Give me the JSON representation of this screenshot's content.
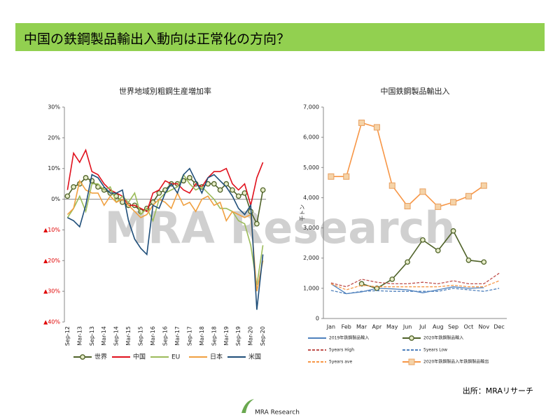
{
  "header": {
    "title": "中国の鉄鋼製品輸出入動向は正常化の方向？",
    "source": "出所：MRAリサーチ",
    "watermark": "MRA Research",
    "logo": "MRA Research"
  },
  "chart_data": [
    {
      "type": "line",
      "title": "世界地域別粗鋼生産増加率",
      "categories": [
        "Sep-12",
        null,
        "Mar-13",
        null,
        "Sep-13",
        null,
        "Mar-14",
        null,
        "Sep-14",
        null,
        "Mar-15",
        null,
        "Sep-15",
        null,
        "Mar-16",
        null,
        "Sep-16",
        null,
        "Mar-17",
        null,
        "Sep-17",
        null,
        "Mar-18",
        null,
        "Sep-18",
        null,
        "Mar-19",
        null,
        "Sep-19",
        null,
        "Mar-20",
        null,
        "Sep-20"
      ],
      "ylim": [
        -40,
        30
      ],
      "yticks": [
        {
          "value": 30,
          "label": "30%"
        },
        {
          "value": 20,
          "label": "20%"
        },
        {
          "value": 10,
          "label": "10%"
        },
        {
          "value": 0,
          "label": "0%"
        },
        {
          "value": -10,
          "label": "▲10%"
        },
        {
          "value": -20,
          "label": "▲20%"
        },
        {
          "value": -30,
          "label": "▲30%"
        },
        {
          "value": -40,
          "label": "▲40%"
        }
      ],
      "negative_tick_color": "#e00000",
      "grid": false,
      "series": [
        {
          "name": "世界",
          "color": "#4f6228",
          "marker": "circle",
          "values": [
            1,
            4,
            5,
            7,
            6,
            4,
            3,
            2,
            1,
            -1,
            -2,
            -2,
            -4,
            -3,
            -1,
            2,
            3,
            5,
            5,
            6,
            7,
            5,
            4,
            5,
            5,
            3,
            5,
            3,
            1,
            2,
            -4,
            -8,
            3
          ]
        },
        {
          "name": "中国",
          "color": "#e0101c",
          "values": [
            3,
            15,
            12,
            16,
            9,
            8,
            5,
            3,
            2,
            1,
            -2,
            -2,
            -3,
            -4,
            2,
            3,
            6,
            5,
            5,
            3,
            2,
            5,
            4,
            7,
            9,
            9,
            10,
            5,
            3,
            5,
            -2,
            7,
            12
          ]
        },
        {
          "name": "EU",
          "color": "#9bbb59",
          "values": [
            -6,
            -3,
            1,
            -4,
            5,
            5,
            3,
            4,
            -1,
            1,
            -1,
            2,
            -5,
            -3,
            -7,
            0,
            2,
            3,
            4,
            8,
            5,
            3,
            4,
            2,
            0,
            -3,
            -3,
            -4,
            -7,
            -8,
            -15,
            -28,
            -15
          ]
        },
        {
          "name": "日本",
          "color": "#f0a040",
          "values": [
            -5,
            -3,
            6,
            3,
            2,
            2,
            -2,
            1,
            -1,
            0,
            -2,
            -4,
            -6,
            -5,
            -2,
            0,
            -1,
            -3,
            2,
            -2,
            -1,
            -4,
            0,
            1,
            -2,
            -1,
            -7,
            -4,
            -5,
            -6,
            -5,
            -30,
            -20
          ]
        },
        {
          "name": "米国",
          "color": "#1f4e79",
          "values": [
            -6,
            -7,
            -9,
            -2,
            8,
            7,
            4,
            2,
            2,
            3,
            -7,
            -13,
            -16,
            -18,
            -2,
            -3,
            2,
            5,
            2,
            8,
            10,
            6,
            2,
            7,
            8,
            6,
            4,
            1,
            -3,
            -5,
            -2,
            -36,
            -18
          ]
        }
      ]
    },
    {
      "type": "line",
      "title": "中国鉄鋼製品輸出入",
      "y_label": "千トン",
      "categories": [
        "Jan",
        "Feb",
        "Mar",
        "Apr",
        "May",
        "Jun",
        "Jul",
        "Aug",
        "Sep",
        "Oct",
        "Nov",
        "Dec"
      ],
      "ylim": [
        0,
        7000
      ],
      "yticks": [
        0,
        {
          "value": 1000,
          "label": "1,000"
        },
        {
          "value": 2000,
          "label": "2,000"
        },
        {
          "value": 3000,
          "label": "3,000"
        },
        {
          "value": 4000,
          "label": "4,000"
        },
        {
          "value": 5000,
          "label": "5,000"
        },
        {
          "value": 6000,
          "label": "6,000"
        },
        {
          "value": 7000,
          "label": "7,000"
        }
      ],
      "grid": false,
      "series": [
        {
          "name": "2019年鉄鋼製品輸入",
          "color": "#4f81bd",
          "values": [
            1150,
            820,
            880,
            1000,
            980,
            950,
            850,
            950,
            1050,
            1000,
            1020,
            null
          ]
        },
        {
          "name": "2020年鉄鋼製品輸入",
          "color": "#4f6228",
          "marker": "circle",
          "values": [
            null,
            null,
            1150,
            1000,
            1300,
            1870,
            2600,
            2250,
            2900,
            1930,
            1870,
            null
          ]
        },
        {
          "name": "5years High",
          "color": "#c0504d",
          "dash": true,
          "values": [
            1180,
            1050,
            1300,
            1200,
            1150,
            1150,
            1200,
            1150,
            1250,
            1150,
            1150,
            1500
          ]
        },
        {
          "name": "5years Low",
          "color": "#4f81bd",
          "dash": true,
          "values": [
            930,
            820,
            900,
            920,
            900,
            900,
            900,
            900,
            1000,
            950,
            900,
            1000
          ]
        },
        {
          "name": "5years ave",
          "color": "#f79646",
          "dash": true,
          "values": [
            1150,
            950,
            1100,
            1050,
            1050,
            1050,
            1050,
            1050,
            1100,
            1050,
            1050,
            1250
          ]
        },
        {
          "name": "2020年鉄鋼製品入年鉄鋼製品輸出",
          "color": "#f79646",
          "marker": "square",
          "values": [
            4700,
            4700,
            6480,
            6330,
            4400,
            3720,
            4200,
            3700,
            3850,
            4050,
            4400,
            null
          ]
        }
      ]
    }
  ]
}
